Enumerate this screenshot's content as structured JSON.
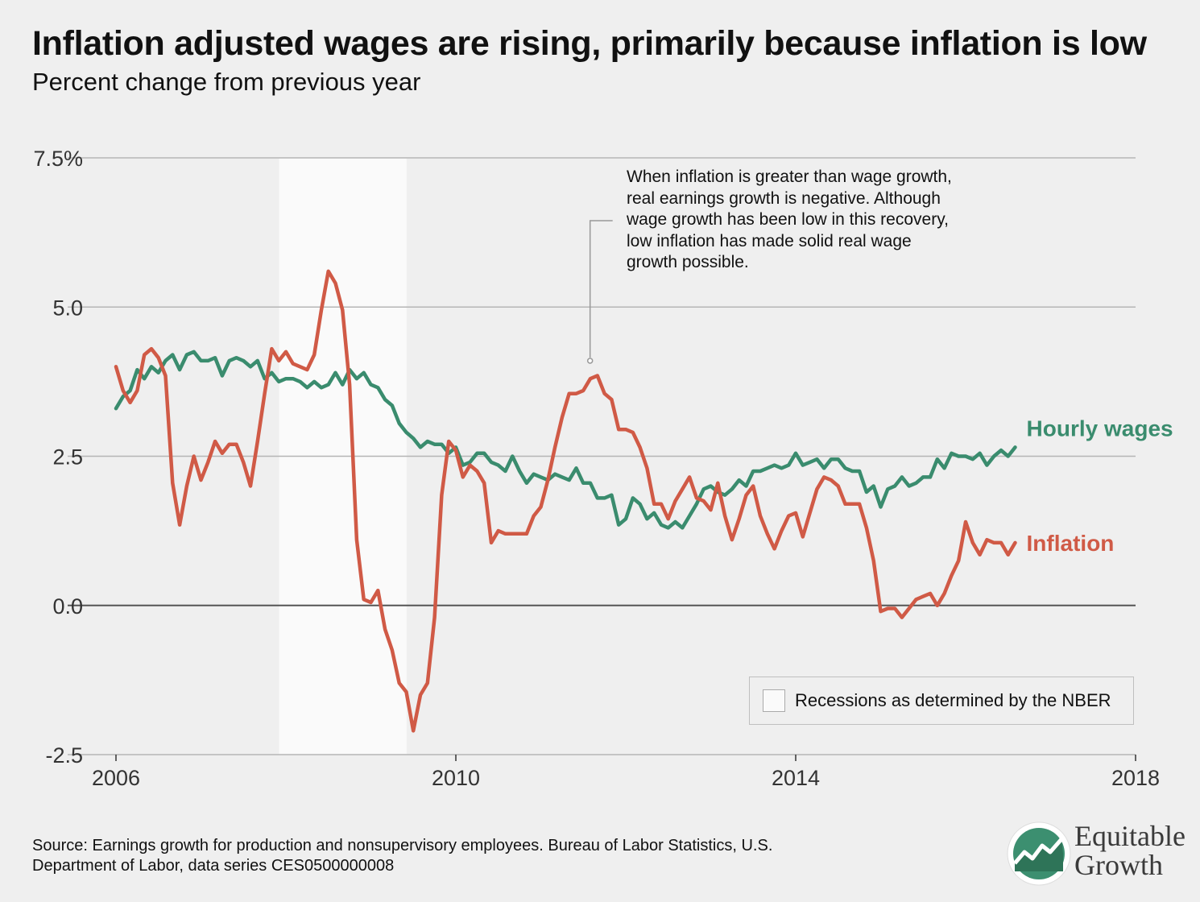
{
  "title": "Inflation adjusted wages are rising, primarily because inflation is low",
  "subtitle": "Percent change from previous year",
  "annotation": [
    "When inflation is greater than wage growth,",
    "real earnings growth is negative. Although",
    "wage growth has been low in this recovery,",
    "low inflation has made solid real wage",
    "growth possible."
  ],
  "legend": {
    "label": "Recessions as determined by the NBER"
  },
  "source": [
    "Source: Earnings growth for production and nonsupervisory employees. Bureau of Labor Statistics, U.S.",
    "Department of Labor, data series CES0500000008"
  ],
  "logo": {
    "line1": "Equitable",
    "line2": "Growth"
  },
  "colors": {
    "wages": "#3a8c6e",
    "inflation": "#d05a46",
    "recession": "#fafafa",
    "grid": "#b5b5b5",
    "zero": "#555555",
    "logo_green": "#3c8f70"
  },
  "chart_data": {
    "type": "line",
    "title": "Inflation adjusted wages are rising, primarily because inflation is low",
    "subtitle": "Percent change from previous year",
    "xlim": [
      2006,
      2018
    ],
    "ylim": [
      -2.5,
      7.5
    ],
    "x_ticks": [
      2006,
      2010,
      2014,
      2018
    ],
    "y_ticks": [
      {
        "value": 7.5,
        "label": "7.5%"
      },
      {
        "value": 5.0,
        "label": "5.0"
      },
      {
        "value": 2.5,
        "label": "2.5"
      },
      {
        "value": 0.0,
        "label": "0.0"
      },
      {
        "value": -2.5,
        "label": "-2.5"
      }
    ],
    "grid": true,
    "recession": {
      "start": 2007.92,
      "end": 2009.42
    },
    "annotation_point": {
      "x": 2011.58,
      "y": 4.1
    },
    "series": [
      {
        "name": "Hourly wages",
        "x_start": 2006.0,
        "x_step": 0.0833333,
        "values": [
          3.3,
          3.5,
          3.6,
          3.95,
          3.8,
          4.0,
          3.9,
          4.1,
          4.2,
          3.95,
          4.2,
          4.25,
          4.1,
          4.1,
          4.15,
          3.85,
          4.1,
          4.15,
          4.1,
          4.0,
          4.1,
          3.8,
          3.9,
          3.75,
          3.8,
          3.8,
          3.75,
          3.65,
          3.75,
          3.65,
          3.7,
          3.9,
          3.7,
          3.95,
          3.8,
          3.9,
          3.7,
          3.65,
          3.45,
          3.35,
          3.05,
          2.9,
          2.8,
          2.65,
          2.75,
          2.7,
          2.7,
          2.55,
          2.65,
          2.35,
          2.4,
          2.55,
          2.55,
          2.4,
          2.35,
          2.25,
          2.5,
          2.25,
          2.05,
          2.2,
          2.15,
          2.1,
          2.2,
          2.15,
          2.1,
          2.3,
          2.05,
          2.05,
          1.8,
          1.8,
          1.85,
          1.35,
          1.45,
          1.8,
          1.7,
          1.45,
          1.55,
          1.35,
          1.3,
          1.4,
          1.3,
          1.5,
          1.7,
          1.95,
          2.0,
          1.9,
          1.85,
          1.95,
          2.1,
          2.0,
          2.25,
          2.25,
          2.3,
          2.35,
          2.3,
          2.35,
          2.55,
          2.35,
          2.4,
          2.45,
          2.3,
          2.45,
          2.45,
          2.3,
          2.25,
          2.25,
          1.9,
          2.0,
          1.65,
          1.95,
          2.0,
          2.15,
          2.0,
          2.05,
          2.15,
          2.15,
          2.45,
          2.3,
          2.55,
          2.5,
          2.5,
          2.45,
          2.55,
          2.35,
          2.5,
          2.6,
          2.5,
          2.65
        ]
      },
      {
        "name": "Inflation",
        "x_start": 2006.0,
        "x_step": 0.0833333,
        "values": [
          4.0,
          3.6,
          3.4,
          3.6,
          4.2,
          4.3,
          4.15,
          3.85,
          2.05,
          1.35,
          2.0,
          2.5,
          2.1,
          2.4,
          2.75,
          2.55,
          2.7,
          2.7,
          2.4,
          2.0,
          2.75,
          3.55,
          4.3,
          4.1,
          4.25,
          4.05,
          4.0,
          3.95,
          4.2,
          4.95,
          5.6,
          5.4,
          4.95,
          3.7,
          1.1,
          0.1,
          0.05,
          0.25,
          -0.4,
          -0.75,
          -1.3,
          -1.45,
          -2.1,
          -1.5,
          -1.3,
          -0.2,
          1.85,
          2.75,
          2.6,
          2.15,
          2.35,
          2.25,
          2.05,
          1.05,
          1.25,
          1.2,
          1.2,
          1.2,
          1.2,
          1.5,
          1.65,
          2.1,
          2.65,
          3.15,
          3.55,
          3.55,
          3.6,
          3.8,
          3.85,
          3.55,
          3.45,
          2.95,
          2.95,
          2.9,
          2.65,
          2.3,
          1.7,
          1.7,
          1.45,
          1.75,
          1.95,
          2.15,
          1.8,
          1.75,
          1.6,
          2.05,
          1.5,
          1.1,
          1.45,
          1.85,
          2.0,
          1.5,
          1.2,
          0.95,
          1.25,
          1.5,
          1.55,
          1.15,
          1.55,
          1.95,
          2.15,
          2.1,
          2.0,
          1.7,
          1.7,
          1.7,
          1.3,
          0.75,
          -0.1,
          -0.05,
          -0.05,
          -0.2,
          -0.05,
          0.1,
          0.15,
          0.2,
          0.0,
          0.2,
          0.5,
          0.75,
          1.4,
          1.05,
          0.85,
          1.1,
          1.05,
          1.05,
          0.85,
          1.05
        ]
      }
    ]
  }
}
